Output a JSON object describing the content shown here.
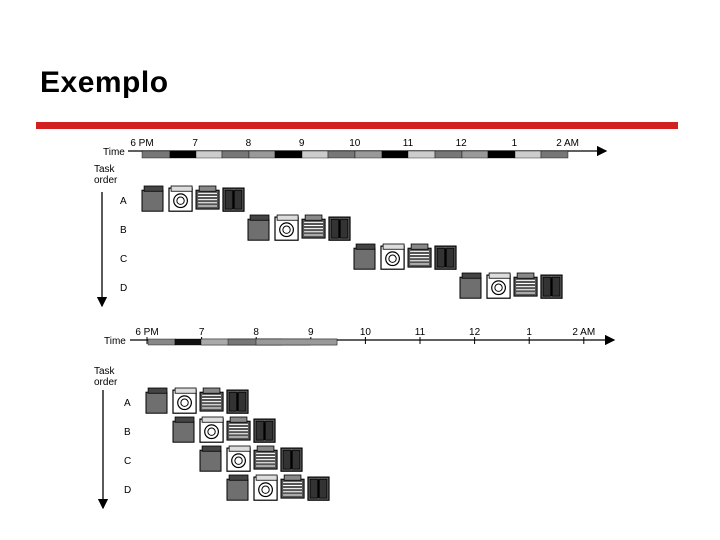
{
  "slide": {
    "title": "Exemplo",
    "accent_color": "#d21f1f"
  },
  "diagram": {
    "time_label": "Time",
    "task_label": "Task order",
    "time_ticks": [
      "6 PM",
      "7",
      "8",
      "9",
      "10",
      "11",
      "12",
      "1",
      "2 AM"
    ],
    "tasks": [
      "A",
      "B",
      "C",
      "D"
    ],
    "sequential": {
      "stage_icons": [
        "washer-icon",
        "dryer-icon",
        "folder-icon",
        "closet-icon"
      ]
    },
    "pipelined": {
      "stage_icons": [
        "washer-icon",
        "dryer-icon",
        "folder-icon",
        "closet-icon"
      ]
    }
  }
}
